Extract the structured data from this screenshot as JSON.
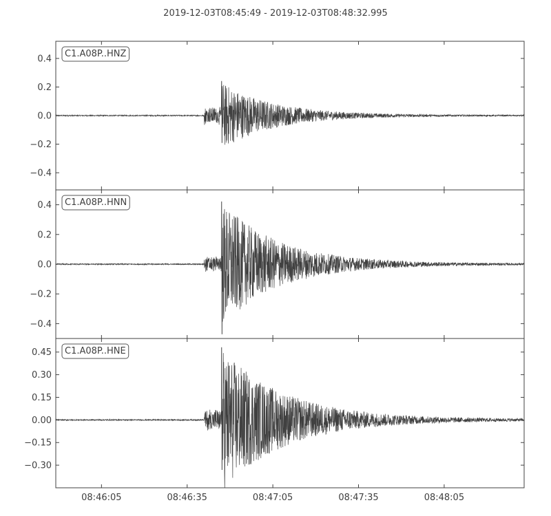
{
  "title": "2019-12-03T08:45:49  -  2019-12-03T08:48:32.995",
  "colors": {
    "trace": "#404040",
    "axes": "#404040",
    "background": "#ffffff",
    "watermark": "#e6e6e6"
  },
  "watermark_icon": "csn-logo-watermark",
  "chart_data": [
    {
      "type": "line",
      "channel_label": "C1.A08P..HNZ",
      "ylim": [
        -0.52,
        0.52
      ],
      "yticks": [
        0.4,
        0.2,
        0.0,
        -0.2,
        -0.4
      ],
      "ytick_labels": [
        "0.4",
        "0.2",
        "0.0",
        "−0.2",
        "−0.4"
      ],
      "xlim_seconds": [
        0,
        164
      ],
      "onset_time": "08:46:41",
      "envelope": {
        "pre_amp": 0.004,
        "p_amp": 0.07,
        "s_time": "08:46:47",
        "s_amp": 0.24,
        "neg_amp": 0.19,
        "decay_s": 18,
        "coda_amp": 0.004
      },
      "grid": false
    },
    {
      "type": "line",
      "channel_label": "C1.A08P..HNN",
      "ylim": [
        -0.5,
        0.5
      ],
      "yticks": [
        0.4,
        0.2,
        0.0,
        -0.2,
        -0.4
      ],
      "ytick_labels": [
        "0.4",
        "0.2",
        "0.0",
        "−0.2",
        "−0.4"
      ],
      "xlim_seconds": [
        0,
        164
      ],
      "onset_time": "08:46:41",
      "envelope": {
        "pre_amp": 0.004,
        "p_amp": 0.06,
        "s_time": "08:46:47",
        "s_amp": 0.42,
        "neg_amp": 0.47,
        "decay_s": 20,
        "coda_amp": 0.005
      },
      "grid": false
    },
    {
      "type": "line",
      "channel_label": "C1.A08P..HNE",
      "ylim": [
        -0.45,
        0.54
      ],
      "yticks": [
        0.45,
        0.3,
        0.15,
        0.0,
        -0.15,
        -0.3
      ],
      "ytick_labels": [
        "0.45",
        "0.30",
        "0.15",
        "0.00",
        "−0.15",
        "−0.30"
      ],
      "xlim_seconds": [
        0,
        164
      ],
      "onset_time": "08:46:41",
      "envelope": {
        "pre_amp": 0.004,
        "p_amp": 0.08,
        "s_time": "08:46:47",
        "s_amp": 0.48,
        "neg_amp": 0.33,
        "decay_s": 22,
        "coda_amp": 0.006
      },
      "grid": false
    }
  ],
  "x_axis": {
    "start_time": "08:45:49",
    "ticks": [
      "08:46:05",
      "08:46:35",
      "08:47:05",
      "08:47:35",
      "08:48:05"
    ],
    "tick_seconds": [
      16,
      46,
      76,
      106,
      136
    ]
  }
}
